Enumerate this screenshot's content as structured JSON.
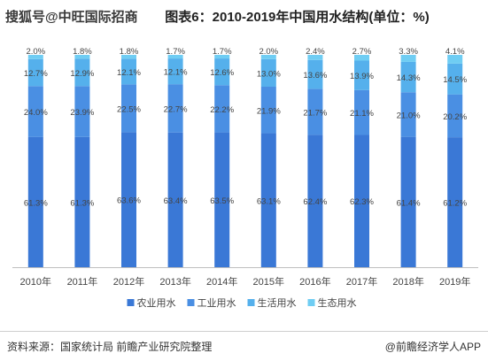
{
  "watermark": "搜狐号@中旺国际招商",
  "title": "图表6：2010-2019年中国用水结构(单位：%)",
  "chart_data": {
    "type": "bar",
    "stacked": true,
    "normalized": true,
    "title": "图表6：2010-2019年中国用水结构(单位：%)",
    "categories": [
      "2010年",
      "2011年",
      "2012年",
      "2013年",
      "2014年",
      "2015年",
      "2016年",
      "2017年",
      "2018年",
      "2019年"
    ],
    "series": [
      {
        "name": "农业用水",
        "color": "#3a78d6",
        "values": [
          61.3,
          61.3,
          63.6,
          63.4,
          63.5,
          63.1,
          62.4,
          62.3,
          61.4,
          61.2
        ]
      },
      {
        "name": "工业用水",
        "color": "#4a8fe3",
        "values": [
          24.0,
          23.9,
          22.5,
          22.7,
          22.2,
          21.9,
          21.7,
          21.1,
          21.0,
          20.2
        ]
      },
      {
        "name": "生活用水",
        "color": "#55b0ec",
        "values": [
          12.7,
          12.9,
          12.1,
          12.1,
          12.6,
          13.0,
          13.6,
          13.9,
          14.3,
          14.5
        ]
      },
      {
        "name": "生态用水",
        "color": "#6fcdf3",
        "values": [
          2.0,
          1.8,
          1.8,
          1.7,
          1.7,
          2.0,
          2.4,
          2.7,
          3.3,
          4.1
        ]
      }
    ],
    "legend_position": "bottom",
    "grid": false
  },
  "footer": {
    "source": "资料来源：国家统计局 前瞻产业研究院整理",
    "brand": "@前瞻经济学人APP"
  }
}
